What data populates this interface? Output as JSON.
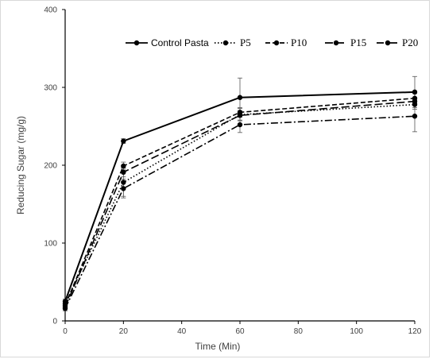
{
  "chart_data": {
    "type": "line",
    "title": "",
    "xlabel": "Time (Min)",
    "ylabel": "Reducing Sugar (mg/g)",
    "xlim": [
      0,
      120
    ],
    "ylim": [
      0,
      400
    ],
    "xticks": [
      0,
      20,
      40,
      60,
      80,
      100,
      120
    ],
    "yticks": [
      0,
      100,
      200,
      300,
      400
    ],
    "grid": false,
    "legend_position": "top-right",
    "x": [
      0,
      20,
      60,
      120
    ],
    "series": [
      {
        "name": "Control Pasta",
        "values": [
          25,
          231,
          287,
          294
        ],
        "errors": [
          3,
          3,
          25,
          20
        ],
        "dash": "solid",
        "color": "#000000"
      },
      {
        "name": "P5",
        "values": [
          22,
          178,
          265,
          278
        ],
        "errors": [
          3,
          18,
          8,
          6
        ],
        "dash": "dotted",
        "color": "#000000"
      },
      {
        "name": "P10",
        "values": [
          20,
          199,
          268,
          286
        ],
        "errors": [
          3,
          5,
          6,
          6
        ],
        "dash": "dashed",
        "color": "#000000"
      },
      {
        "name": "P15",
        "values": [
          18,
          191,
          264,
          282
        ],
        "errors": [
          3,
          6,
          6,
          5
        ],
        "dash": "long-dash",
        "color": "#000000"
      },
      {
        "name": "P20",
        "values": [
          16,
          170,
          252,
          263
        ],
        "errors": [
          3,
          12,
          10,
          20
        ],
        "dash": "dash-dot",
        "color": "#000000"
      }
    ]
  }
}
